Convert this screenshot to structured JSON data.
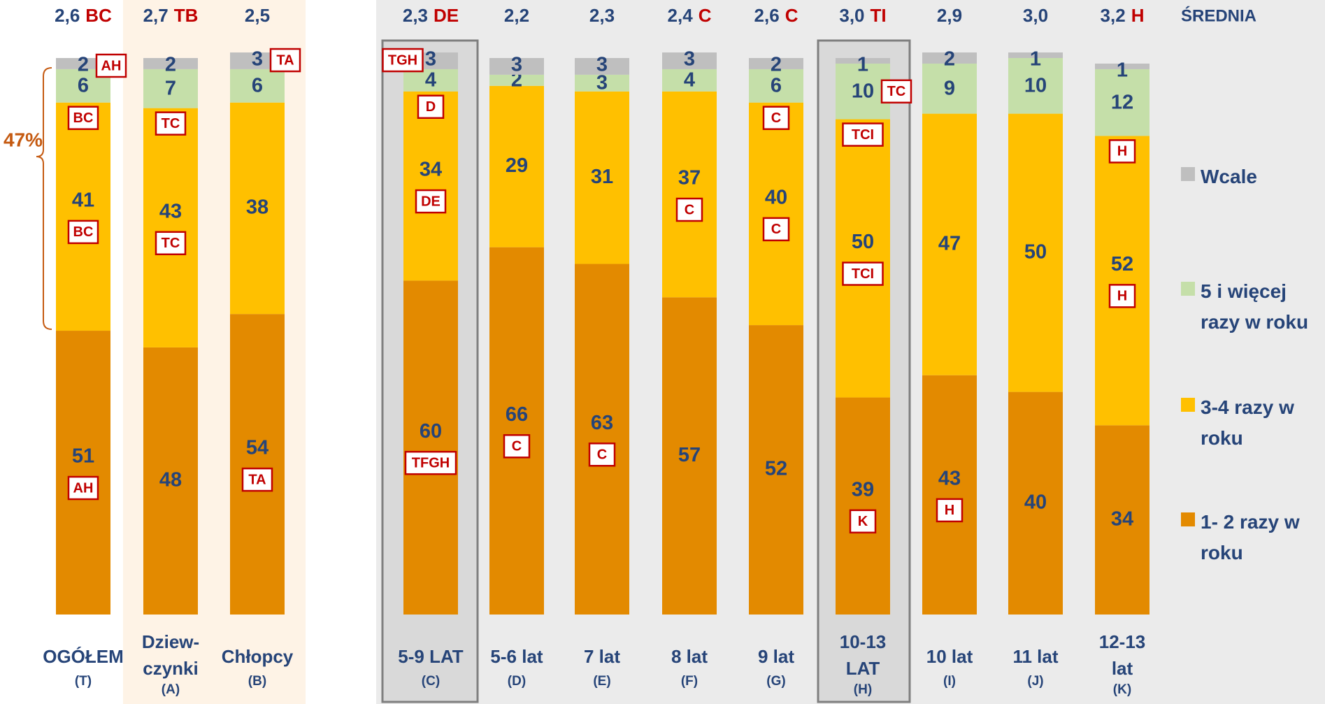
{
  "chart_data": {
    "type": "stacked_bar",
    "mean_header": "ŚREDNIA",
    "annotation": "47%",
    "categories": [
      [
        "OGÓŁEM"
      ],
      [
        "Dziew-",
        "czynki"
      ],
      [
        "Chłopcy"
      ],
      [
        "5-9 LAT"
      ],
      [
        "5-6 lat"
      ],
      [
        "7 lat"
      ],
      [
        "8 lat"
      ],
      [
        "9 lat"
      ],
      [
        "10-13",
        "LAT"
      ],
      [
        "10 lat"
      ],
      [
        "11 lat"
      ],
      [
        "12-13",
        "lat"
      ]
    ],
    "category_codes": [
      "(T)",
      "(A)",
      "(B)",
      "(C)",
      "(D)",
      "(E)",
      "(F)",
      "(G)",
      "(H)",
      "(I)",
      "(J)",
      "(K)"
    ],
    "means": [
      "2,6",
      "2,7",
      "2,5",
      "2,3",
      "2,2",
      "2,3",
      "2,4",
      "2,6",
      "3,0",
      "2,9",
      "3,0",
      "3,2"
    ],
    "mean_codes": [
      "BC",
      "TB",
      null,
      "DE",
      null,
      null,
      "C",
      "C",
      "TI",
      null,
      null,
      "H"
    ],
    "ylim": [
      0,
      100
    ],
    "series": [
      {
        "name": "1- 2 razy w roku",
        "color": "#E38A00",
        "values": [
          51,
          48,
          54,
          60,
          66,
          63,
          57,
          52,
          39,
          43,
          40,
          34
        ],
        "codes": [
          "AH",
          null,
          "TA",
          "TFGH",
          "C",
          "C",
          null,
          null,
          "K",
          "H",
          null,
          null
        ]
      },
      {
        "name": "3-4 razy w roku",
        "color": "#FFC000",
        "values": [
          41,
          43,
          38,
          34,
          29,
          31,
          37,
          40,
          50,
          47,
          50,
          52
        ],
        "codes": [
          "BC",
          "TC",
          null,
          "DE",
          null,
          null,
          "C",
          "C",
          "TCI",
          null,
          null,
          "H"
        ]
      },
      {
        "name": "5 i więcej razy w roku",
        "color": "#C5DFA9",
        "values": [
          6,
          7,
          6,
          4,
          2,
          3,
          4,
          6,
          10,
          9,
          10,
          12
        ],
        "codes": [
          [
            "BC"
          ],
          [
            "TC"
          ],
          null,
          [
            "D"
          ],
          null,
          null,
          null,
          [
            "C"
          ],
          [
            "TC",
            "TCI"
          ],
          null,
          null,
          [
            "H"
          ]
        ]
      },
      {
        "name": "Wcale",
        "color": "#BFBFBF",
        "values": [
          2,
          2,
          3,
          3,
          3,
          3,
          3,
          2,
          1,
          2,
          1,
          1
        ],
        "codes": [
          "AH",
          null,
          "TA",
          "TGH",
          null,
          null,
          null,
          null,
          null,
          null,
          null,
          null
        ]
      }
    ]
  }
}
